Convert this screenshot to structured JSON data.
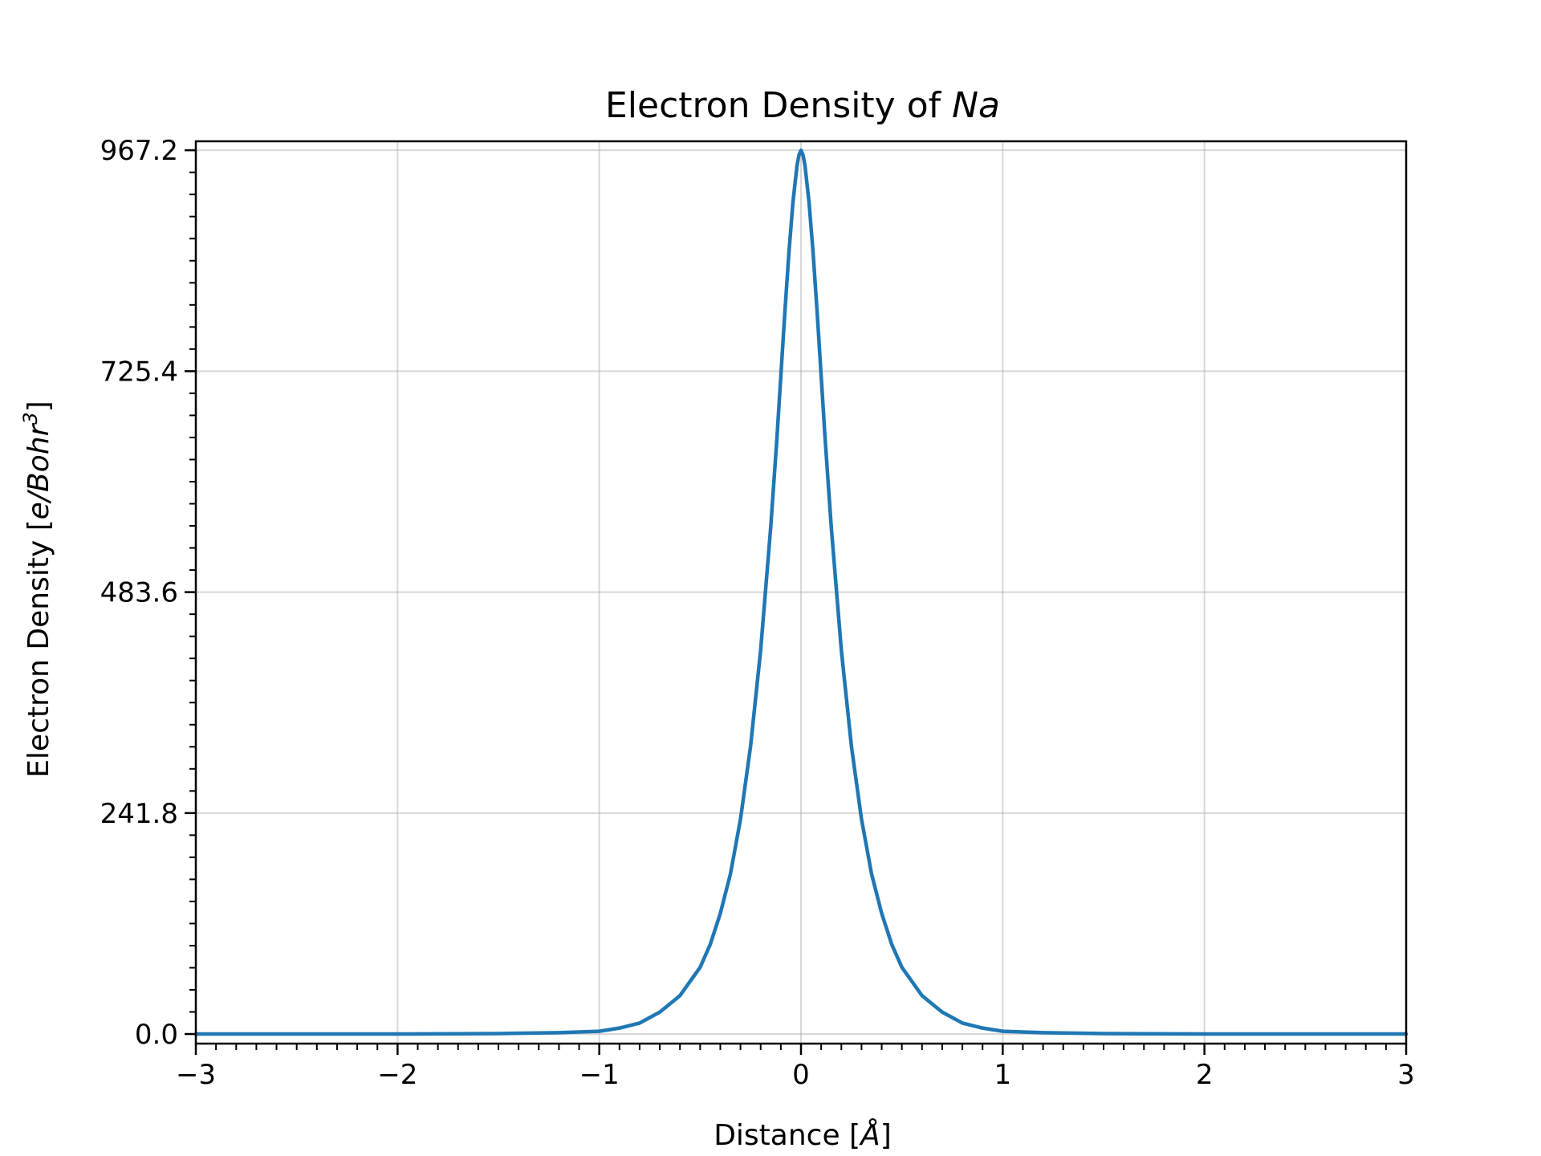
{
  "chart_data": {
    "type": "line",
    "title": "Electron Density of Na",
    "title_plain": "Electron Density of ",
    "title_italic": "Na",
    "xlabel": "Distance [Å]",
    "xlabel_plain": "Distance [",
    "xlabel_italic": "Å",
    "xlabel_close": "]",
    "ylabel": "Electron Density [e/Bohr³]",
    "ylabel_plain": "Electron Density [",
    "ylabel_italic": "e/Bohr",
    "ylabel_sup": "3",
    "ylabel_close": "]",
    "xlim": [
      -3,
      3
    ],
    "ylim": [
      -10.5,
      977
    ],
    "x_ticks": [
      -3,
      -2,
      -1,
      0,
      1,
      2,
      3
    ],
    "x_tick_labels": [
      "−3",
      "−2",
      "−1",
      "0",
      "1",
      "2",
      "3"
    ],
    "y_ticks": [
      0.0,
      241.8,
      483.6,
      725.4,
      967.2
    ],
    "y_tick_labels": [
      "0.0",
      "241.8",
      "483.6",
      "725.4",
      "967.2"
    ],
    "grid": true,
    "line_color": "#1f77b4",
    "series": [
      {
        "x": [
          -3.0,
          -2.0,
          -1.5,
          -1.2,
          -1.0,
          -0.9,
          -0.8,
          -0.7,
          -0.6,
          -0.5,
          -0.45,
          -0.4,
          -0.35,
          -0.3,
          -0.25,
          -0.2,
          -0.15,
          -0.12,
          -0.1,
          -0.08,
          -0.06,
          -0.04,
          -0.02,
          -0.01,
          0.0,
          0.01,
          0.02,
          0.04,
          0.06,
          0.08,
          0.1,
          0.12,
          0.15,
          0.2,
          0.25,
          0.3,
          0.35,
          0.4,
          0.45,
          0.5,
          0.6,
          0.7,
          0.8,
          0.9,
          1.0,
          1.2,
          1.5,
          2.0,
          3.0
        ],
        "y": [
          0.0,
          0.0,
          0.5,
          1.5,
          3.0,
          6.5,
          12.0,
          24.0,
          42.0,
          73.0,
          98.0,
          132.0,
          175.0,
          235.0,
          315.0,
          420.0,
          555.0,
          650.0,
          720.0,
          790.0,
          855.0,
          910.0,
          950.0,
          962.0,
          967.2,
          962.0,
          950.0,
          910.0,
          855.0,
          790.0,
          720.0,
          650.0,
          555.0,
          420.0,
          315.0,
          235.0,
          175.0,
          132.0,
          98.0,
          73.0,
          42.0,
          24.0,
          12.0,
          6.5,
          3.0,
          1.5,
          0.5,
          0.0,
          0.0
        ]
      }
    ]
  }
}
